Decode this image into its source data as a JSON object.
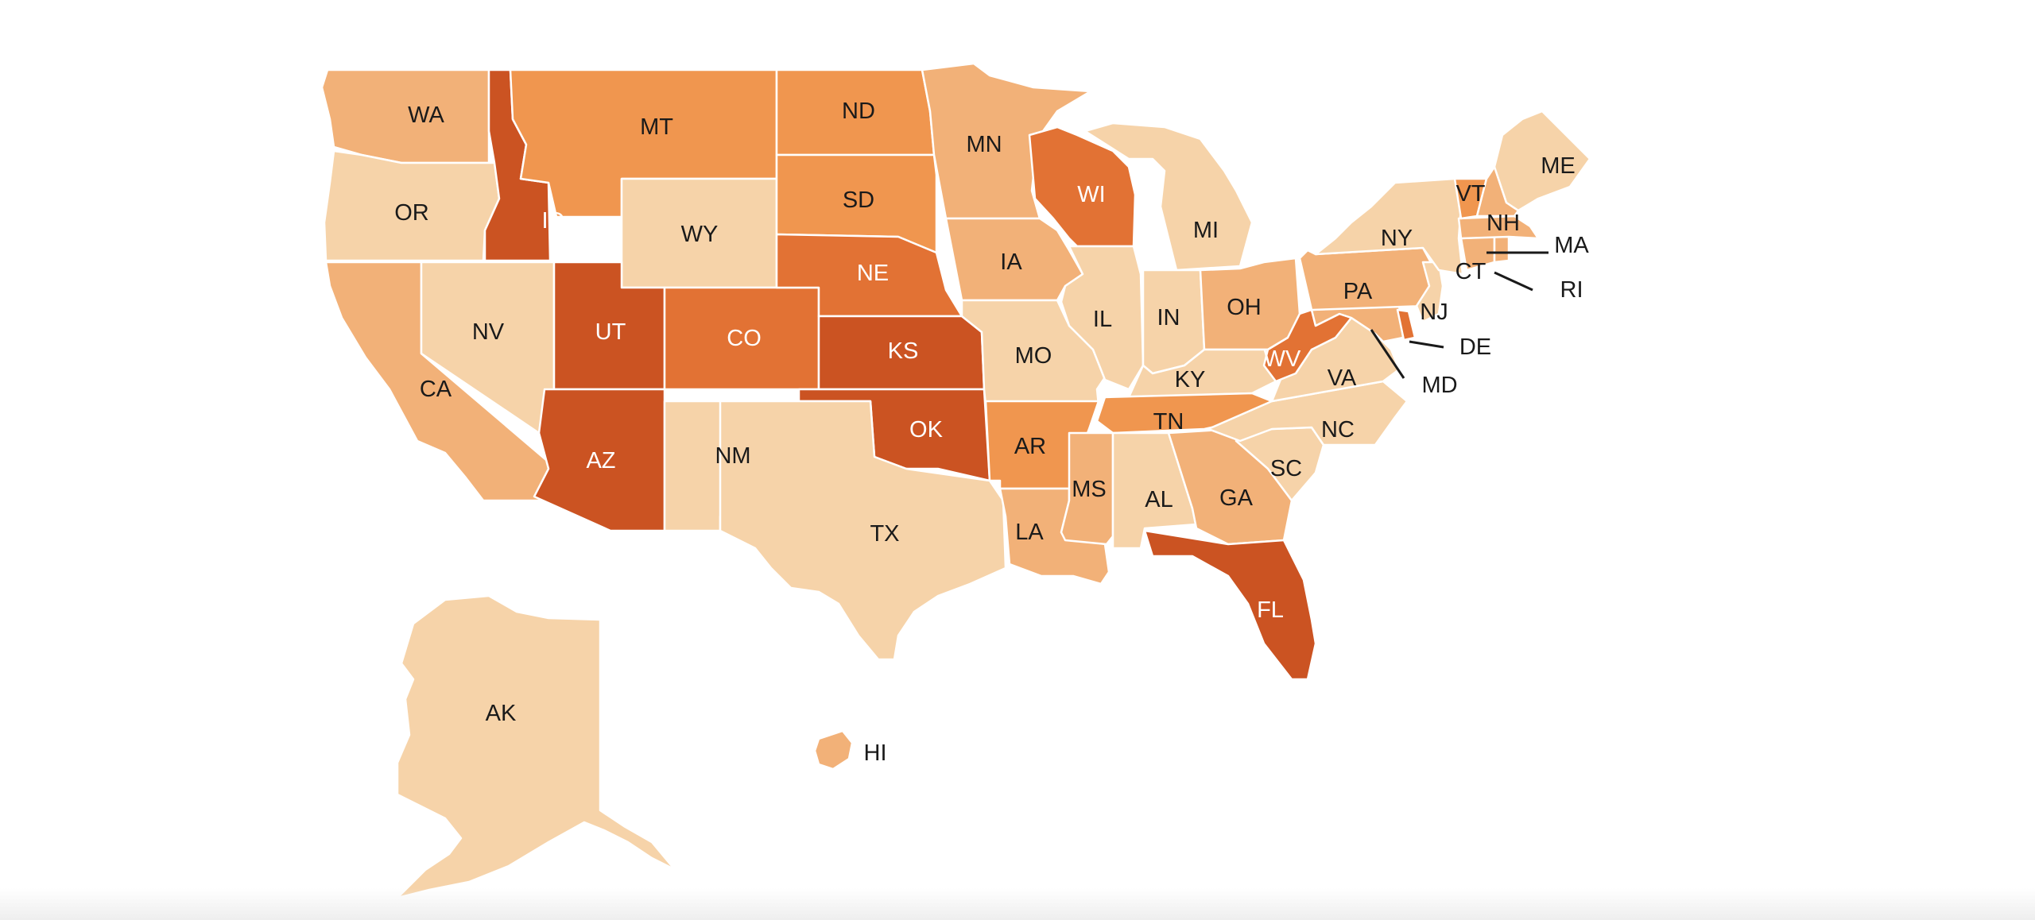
{
  "palette": {
    "level1": "#f6d3a9",
    "level2": "#f2b178",
    "level3": "#f0964f",
    "level4": "#e27234",
    "level5": "#cb5322",
    "label_dark": "#1a1a1a",
    "label_light": "#ffffff",
    "leader_line": "#1a1a1a"
  },
  "states": [
    {
      "code": "WA",
      "level": 2
    },
    {
      "code": "OR",
      "level": 1
    },
    {
      "code": "CA",
      "level": 2
    },
    {
      "code": "NV",
      "level": 1
    },
    {
      "code": "ID",
      "level": 5
    },
    {
      "code": "MT",
      "level": 3
    },
    {
      "code": "WY",
      "level": 1
    },
    {
      "code": "UT",
      "level": 5
    },
    {
      "code": "AZ",
      "level": 5
    },
    {
      "code": "CO",
      "level": 4
    },
    {
      "code": "NM",
      "level": 1
    },
    {
      "code": "ND",
      "level": 3
    },
    {
      "code": "SD",
      "level": 3
    },
    {
      "code": "NE",
      "level": 4
    },
    {
      "code": "KS",
      "level": 5
    },
    {
      "code": "OK",
      "level": 5
    },
    {
      "code": "TX",
      "level": 1
    },
    {
      "code": "MN",
      "level": 2
    },
    {
      "code": "IA",
      "level": 2
    },
    {
      "code": "MO",
      "level": 1
    },
    {
      "code": "AR",
      "level": 3
    },
    {
      "code": "LA",
      "level": 2
    },
    {
      "code": "WI",
      "level": 4
    },
    {
      "code": "IL",
      "level": 1
    },
    {
      "code": "MI",
      "level": 1
    },
    {
      "code": "IN",
      "level": 1
    },
    {
      "code": "OH",
      "level": 2
    },
    {
      "code": "KY",
      "level": 1
    },
    {
      "code": "TN",
      "level": 3
    },
    {
      "code": "MS",
      "level": 2
    },
    {
      "code": "AL",
      "level": 1
    },
    {
      "code": "GA",
      "level": 2
    },
    {
      "code": "FL",
      "level": 5
    },
    {
      "code": "SC",
      "level": 1
    },
    {
      "code": "NC",
      "level": 1
    },
    {
      "code": "VA",
      "level": 1
    },
    {
      "code": "WV",
      "level": 4
    },
    {
      "code": "MD",
      "level": 2
    },
    {
      "code": "DE",
      "level": 4
    },
    {
      "code": "PA",
      "level": 2
    },
    {
      "code": "NJ",
      "level": 1
    },
    {
      "code": "NY",
      "level": 1
    },
    {
      "code": "CT",
      "level": 2
    },
    {
      "code": "RI",
      "level": 2
    },
    {
      "code": "MA",
      "level": 2
    },
    {
      "code": "VT",
      "level": 3
    },
    {
      "code": "NH",
      "level": 2
    },
    {
      "code": "ME",
      "level": 1
    },
    {
      "code": "AK",
      "level": 1
    },
    {
      "code": "HI",
      "level": 2
    }
  ]
}
